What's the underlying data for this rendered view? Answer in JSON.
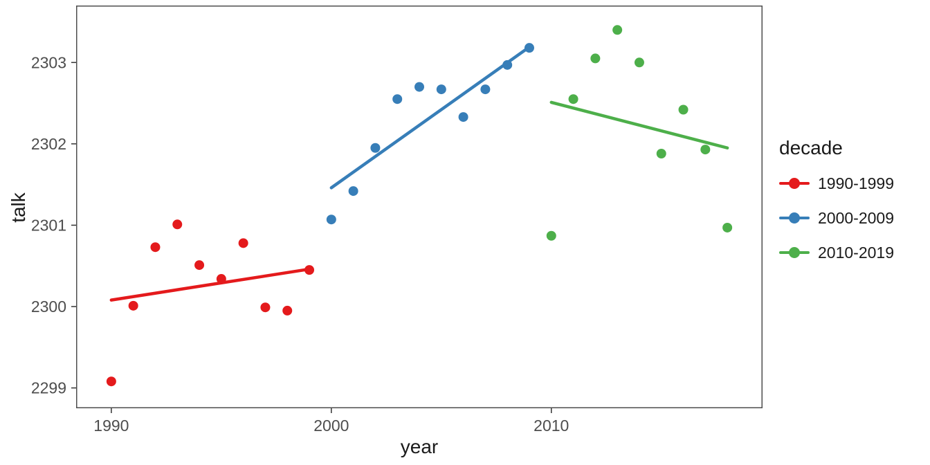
{
  "chart_data": {
    "type": "scatter",
    "title": "",
    "xlabel": "year",
    "ylabel": "talk",
    "xlim": [
      1988.4,
      2019.6
    ],
    "ylim": [
      2298.75,
      2303.7
    ],
    "x_ticks": [
      1990,
      2000,
      2010
    ],
    "y_ticks": [
      2299,
      2300,
      2301,
      2302,
      2303
    ],
    "grid": false,
    "panel_border_color": "#4d4d4d",
    "tick_label_color": "#4d4d4d",
    "legend": {
      "title": "decade",
      "position": "right"
    },
    "series": [
      {
        "name": "1990-1999",
        "color": "#E41A1C",
        "points": [
          [
            1990,
            2299.08
          ],
          [
            1991,
            2300.01
          ],
          [
            1992,
            2300.73
          ],
          [
            1993,
            2301.01
          ],
          [
            1994,
            2300.51
          ],
          [
            1995,
            2300.34
          ],
          [
            1996,
            2300.78
          ],
          [
            1997,
            2299.99
          ],
          [
            1998,
            2299.95
          ],
          [
            1999,
            2300.45
          ]
        ],
        "trend": [
          [
            1990,
            2300.08
          ],
          [
            1999,
            2300.46
          ]
        ]
      },
      {
        "name": "2000-2009",
        "color": "#377EB8",
        "points": [
          [
            2000,
            2301.07
          ],
          [
            2001,
            2301.42
          ],
          [
            2002,
            2301.95
          ],
          [
            2003,
            2302.55
          ],
          [
            2004,
            2302.7
          ],
          [
            2005,
            2302.67
          ],
          [
            2006,
            2302.33
          ],
          [
            2007,
            2302.67
          ],
          [
            2008,
            2302.97
          ],
          [
            2009,
            2303.18
          ]
        ],
        "trend": [
          [
            2000,
            2301.46
          ],
          [
            2009,
            2303.19
          ]
        ]
      },
      {
        "name": "2010-2019",
        "color": "#4DAF4A",
        "points": [
          [
            2010,
            2300.87
          ],
          [
            2011,
            2302.55
          ],
          [
            2012,
            2303.05
          ],
          [
            2013,
            2303.4
          ],
          [
            2014,
            2303.0
          ],
          [
            2015,
            2301.88
          ],
          [
            2016,
            2302.42
          ],
          [
            2017,
            2301.93
          ],
          [
            2018,
            2300.97
          ]
        ],
        "trend": [
          [
            2010,
            2302.51
          ],
          [
            2018,
            2301.95
          ]
        ]
      }
    ]
  }
}
